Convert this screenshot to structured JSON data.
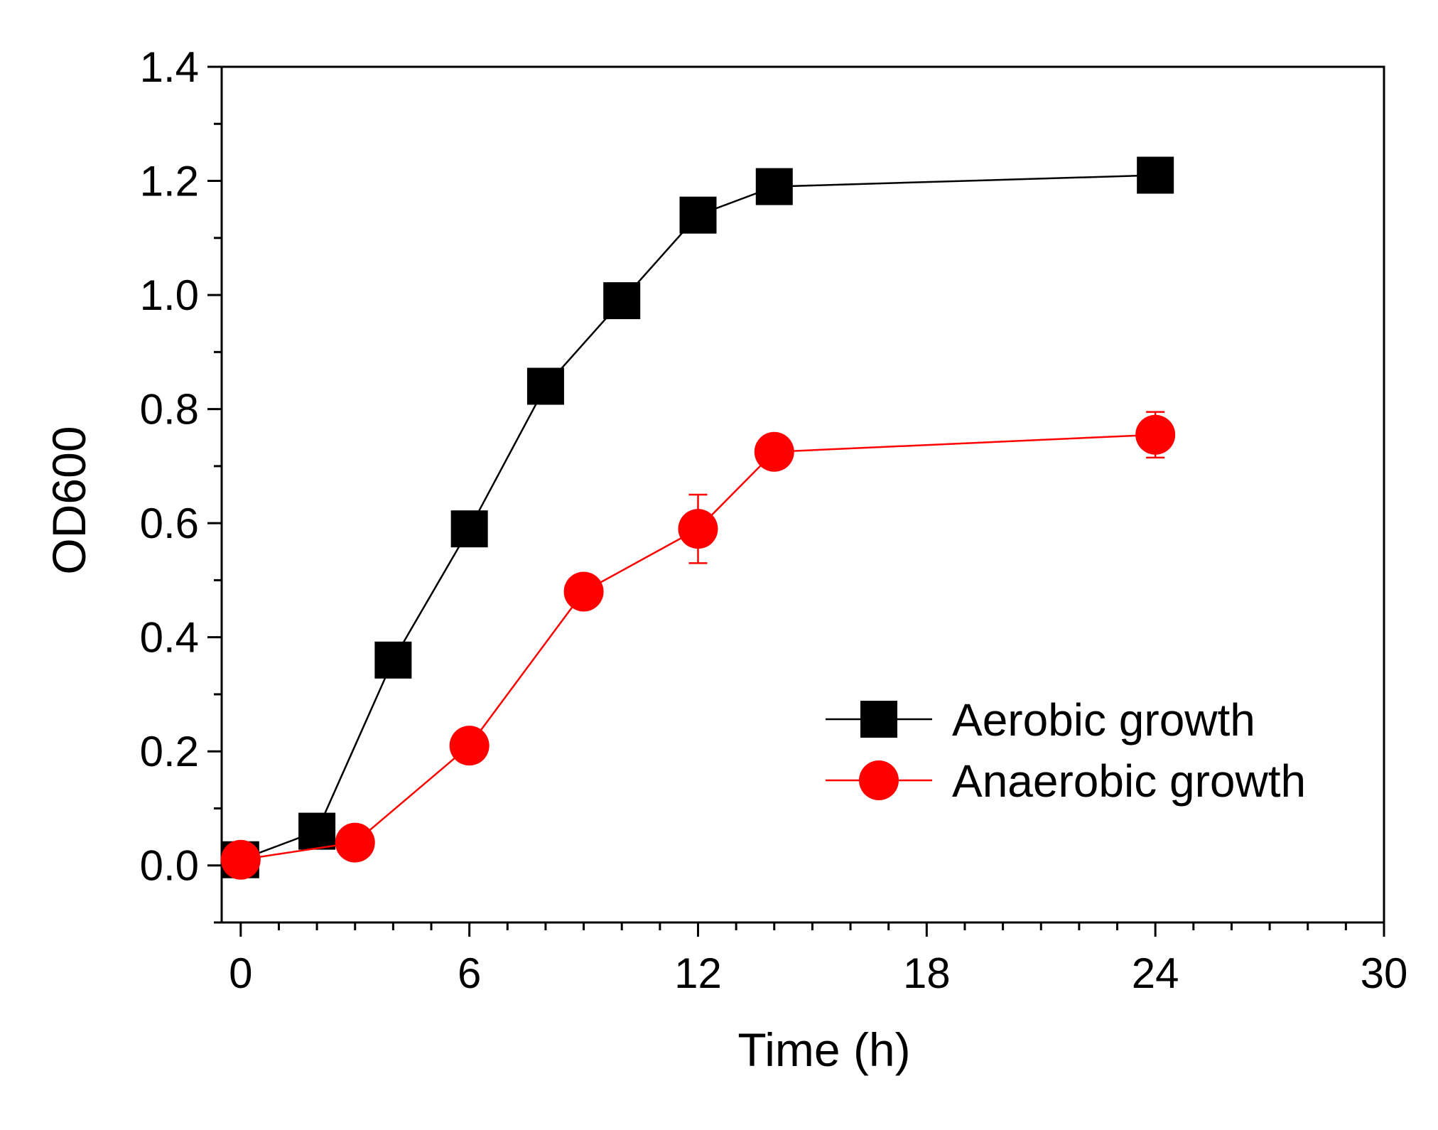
{
  "chart_data": {
    "type": "line",
    "title": "",
    "xlabel": "Time (h)",
    "ylabel": "OD600",
    "xlim": [
      -0.5,
      30
    ],
    "ylim": [
      -0.1,
      1.4
    ],
    "xticks": [
      0,
      6,
      12,
      18,
      24,
      30
    ],
    "yticks": [
      0.0,
      0.2,
      0.4,
      0.6,
      0.8,
      1.0,
      1.2,
      1.4
    ],
    "xtick_labels": [
      "0",
      "6",
      "12",
      "18",
      "24",
      "30"
    ],
    "ytick_labels": [
      "0.0",
      "0.2",
      "0.4",
      "0.6",
      "0.8",
      "1.0",
      "1.2",
      "1.4"
    ],
    "grid": false,
    "legend_position": "bottom-right",
    "series": [
      {
        "name": "Aerobic growth",
        "color": "#000000",
        "marker": "square",
        "x": [
          0,
          2,
          4,
          6,
          8,
          10,
          12,
          14,
          24
        ],
        "y": [
          0.01,
          0.06,
          0.36,
          0.59,
          0.84,
          0.99,
          1.14,
          1.19,
          1.21
        ],
        "error": [
          0.005,
          0.005,
          0.01,
          0.01,
          0.01,
          0.01,
          0.01,
          0.01,
          0.01
        ]
      },
      {
        "name": "Anaerobic growth",
        "color": "#ff0000",
        "marker": "circle",
        "x": [
          0,
          3,
          6,
          9,
          12,
          14,
          24
        ],
        "y": [
          0.01,
          0.04,
          0.21,
          0.48,
          0.59,
          0.725,
          0.755
        ],
        "error": [
          0.005,
          0.005,
          0.01,
          0.02,
          0.06,
          0.01,
          0.04
        ]
      }
    ]
  }
}
